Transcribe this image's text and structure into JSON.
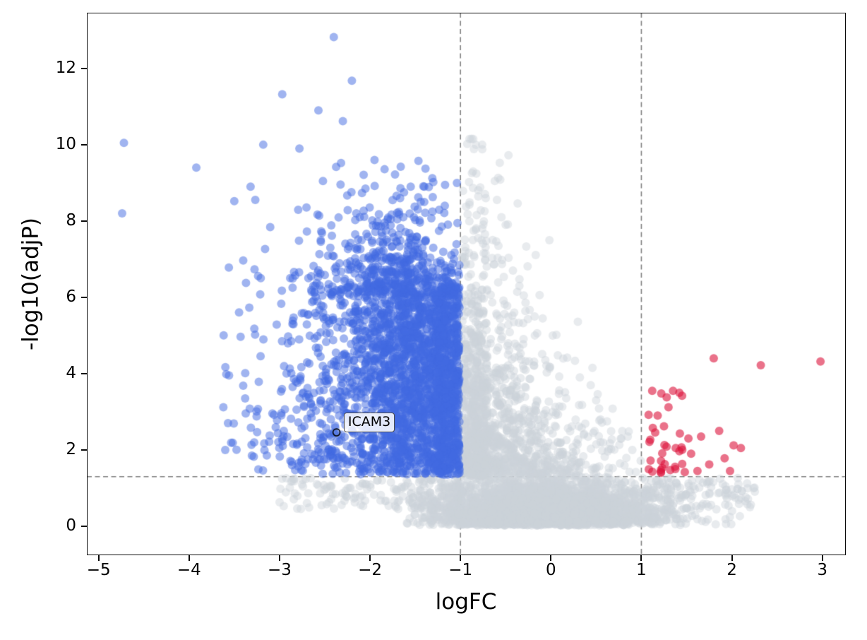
{
  "chart_data": {
    "type": "scatter",
    "subtype": "volcano-plot",
    "title": "",
    "xlabel": "logFC",
    "ylabel": "-log10(adjP)",
    "xlim": [
      -5.13,
      3.26
    ],
    "ylim": [
      -0.76,
      13.46
    ],
    "x_ticks": [
      -5,
      -4,
      -3,
      -2,
      -1,
      0,
      1,
      2,
      3
    ],
    "x_tick_labels": [
      "−5",
      "−4",
      "−3",
      "−2",
      "−1",
      "0",
      "1",
      "2",
      "3"
    ],
    "y_ticks": [
      0,
      2,
      4,
      6,
      8,
      10,
      12
    ],
    "y_tick_labels": [
      "0",
      "2",
      "4",
      "6",
      "8",
      "10",
      "12"
    ],
    "grid": false,
    "legend": "none",
    "background_color": "#ffffff",
    "point_radius_px": 6,
    "threshold_lines": {
      "style": "dashed",
      "color": "#808080",
      "vertical_x": [
        -1,
        1
      ],
      "horizontal_y": 1.3
    },
    "annotation": {
      "label": "ICAM3",
      "x": -2.37,
      "y": 2.46,
      "box_x": -2.29,
      "box_y": 2.98,
      "marker": "open-circle",
      "marker_color": "#000000"
    },
    "series": [
      {
        "name": "non-significant",
        "color": "#ccd3da",
        "alpha": 0.45,
        "clusters": [
          {
            "n": 2800,
            "x": {
              "dist": "gauss",
              "mean": -0.1,
              "sd": 0.62,
              "min": -1.6,
              "max": 1.6
            },
            "y": {
              "dist": "halfgauss",
              "base": 0.02,
              "sd": 0.6,
              "min": 0,
              "max": 1.32
            }
          },
          {
            "n": 500,
            "x": {
              "dist": "gauss",
              "mean": 0.3,
              "sd": 0.75,
              "min": -1.35,
              "max": 2.35
            },
            "y": {
              "dist": "halfgauss",
              "base": 0.05,
              "sd": 0.45,
              "min": 0,
              "max": 1.28
            }
          },
          {
            "n": 700,
            "x": {
              "dist": "gauss",
              "mean": -0.68,
              "sd": 0.3,
              "min": -0.995,
              "max": 0.5
            },
            "y": {
              "dist": "exp",
              "offset": 1.32,
              "scale": 1.9,
              "min": 1.32,
              "max": 10.2
            }
          },
          {
            "n": 450,
            "x": {
              "dist": "uniform",
              "min": -0.995,
              "max": -0.7
            },
            "y": {
              "dist": "exp",
              "offset": 1.32,
              "scale": 2.4,
              "min": 1.32,
              "max": 10.3
            }
          },
          {
            "n": 300,
            "x": {
              "dist": "gauss",
              "mean": 0.0,
              "sd": 0.42,
              "min": -0.9,
              "max": 1.0
            },
            "y": {
              "dist": "exp",
              "offset": 1.32,
              "scale": 0.9,
              "min": 1.32,
              "max": 4.9
            }
          },
          {
            "n": 150,
            "x": {
              "dist": "uniform",
              "min": -3.0,
              "max": -1.0
            },
            "y": {
              "dist": "uniform",
              "min": 0.45,
              "max": 1.28
            }
          },
          {
            "n": 90,
            "x": {
              "dist": "uniform",
              "min": 1.0,
              "max": 2.3
            },
            "y": {
              "dist": "gauss",
              "mean": 0.95,
              "sd": 0.3,
              "min": 0.35,
              "max": 1.27
            }
          }
        ],
        "points": [
          [
            -0.9,
            10.15
          ],
          [
            -0.76,
            10.0
          ],
          [
            -0.86,
            9.3
          ],
          [
            -0.62,
            9.05
          ],
          [
            -0.72,
            8.6
          ],
          [
            -0.5,
            7.9
          ],
          [
            -0.58,
            7.35
          ],
          [
            -0.42,
            6.7
          ],
          [
            -0.3,
            6.05
          ],
          [
            -0.18,
            5.5
          ],
          [
            0.02,
            5.0
          ],
          [
            0.18,
            4.42
          ],
          [
            0.32,
            3.9
          ],
          [
            0.5,
            3.3
          ],
          [
            0.62,
            2.75
          ],
          [
            0.78,
            2.3
          ],
          [
            0.9,
            2.0
          ],
          [
            0.85,
            2.35
          ],
          [
            1.52,
            1.12
          ],
          [
            1.93,
            1.05
          ],
          [
            2.24,
            1.0
          ]
        ]
      },
      {
        "name": "down-regulated",
        "color": "#4169e1",
        "alpha": 0.5,
        "clusters": [
          {
            "n": 1900,
            "x": {
              "dist": "gauss",
              "mean": -1.52,
              "sd": 0.48,
              "min": -2.9,
              "max": -1.01
            },
            "y": {
              "dist": "uniform",
              "min": 1.35,
              "max": 6.15
            }
          },
          {
            "n": 420,
            "x": {
              "dist": "uniform",
              "min": -1.28,
              "max": -1.01
            },
            "y": {
              "dist": "uniform",
              "min": 1.35,
              "max": 6.3
            }
          },
          {
            "n": 520,
            "x": {
              "dist": "gauss",
              "mean": -1.62,
              "sd": 0.5,
              "min": -2.9,
              "max": -1.01
            },
            "y": {
              "dist": "exp",
              "offset": 6.1,
              "scale": 0.85,
              "min": 6.1,
              "max": 9.7
            }
          },
          {
            "n": 150,
            "x": {
              "dist": "gauss",
              "mean": -2.7,
              "sd": 0.35,
              "min": -3.65,
              "max": -2.3
            },
            "y": {
              "dist": "exp",
              "offset": 1.45,
              "scale": 2.2,
              "min": 1.45,
              "max": 9.2
            }
          },
          {
            "n": 26,
            "x": {
              "dist": "uniform",
              "min": -3.7,
              "max": -3.1
            },
            "y": {
              "dist": "uniform",
              "min": 1.6,
              "max": 7.0
            }
          }
        ],
        "points": [
          [
            -4.72,
            10.05
          ],
          [
            -4.74,
            8.2
          ],
          [
            -3.92,
            9.4
          ],
          [
            -2.4,
            12.82
          ],
          [
            -2.2,
            11.68
          ],
          [
            -2.97,
            11.32
          ],
          [
            -2.57,
            10.9
          ],
          [
            -2.3,
            10.62
          ],
          [
            -3.18,
            10.0
          ],
          [
            -2.78,
            9.9
          ],
          [
            -2.32,
            9.52
          ],
          [
            -1.95,
            9.6
          ],
          [
            -2.52,
            9.05
          ],
          [
            -3.32,
            8.9
          ],
          [
            -3.5,
            8.52
          ],
          [
            -1.55,
            8.9
          ],
          [
            -1.3,
            9.02
          ],
          [
            -1.75,
            8.55
          ],
          [
            -2.05,
            8.85
          ],
          [
            -1.4,
            8.5
          ],
          [
            -3.56,
            6.78
          ],
          [
            -3.6,
            2.0
          ],
          [
            -3.38,
            3.35
          ],
          [
            -3.28,
            2.2
          ]
        ]
      },
      {
        "name": "up-regulated",
        "color": "#dc143c",
        "alpha": 0.6,
        "clusters": [
          {
            "n": 24,
            "x": {
              "dist": "gauss",
              "mean": 1.2,
              "sd": 0.15,
              "min": 1.02,
              "max": 1.6
            },
            "y": {
              "dist": "exp",
              "offset": 1.38,
              "scale": 0.55,
              "min": 1.38,
              "max": 2.6
            }
          }
        ],
        "points": [
          [
            1.8,
            4.4
          ],
          [
            2.32,
            4.22
          ],
          [
            2.98,
            4.32
          ],
          [
            1.35,
            3.55
          ],
          [
            1.42,
            3.5
          ],
          [
            1.28,
            3.38
          ],
          [
            1.22,
            3.48
          ],
          [
            1.12,
            3.55
          ],
          [
            1.3,
            3.12
          ],
          [
            1.45,
            3.42
          ],
          [
            1.18,
            2.9
          ],
          [
            1.08,
            2.92
          ],
          [
            1.25,
            2.62
          ],
          [
            1.66,
            2.35
          ],
          [
            1.86,
            2.5
          ],
          [
            2.02,
            2.12
          ],
          [
            1.92,
            1.78
          ],
          [
            2.1,
            2.05
          ],
          [
            1.55,
            1.9
          ],
          [
            1.62,
            1.45
          ],
          [
            1.48,
            1.42
          ],
          [
            1.38,
            2.05
          ],
          [
            1.52,
            2.3
          ],
          [
            1.98,
            1.45
          ],
          [
            1.75,
            1.62
          ]
        ]
      }
    ]
  }
}
